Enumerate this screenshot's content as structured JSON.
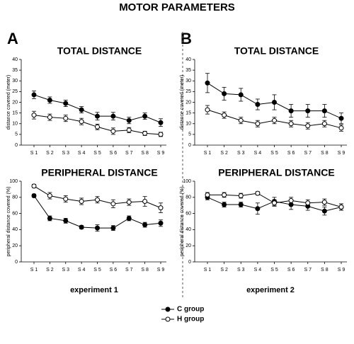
{
  "title": "MOTOR PARAMETERS",
  "panels": [
    {
      "label": "A",
      "footer": "experiment 1"
    },
    {
      "label": "B",
      "footer": "experiment 2"
    }
  ],
  "chart_data": [
    {
      "type": "line",
      "title": "TOTAL DISTANCE",
      "y_label": "distance covered (meter)",
      "categories": [
        "S 1",
        "S 2",
        "S 3",
        "S 4",
        "S 5",
        "S 6",
        "S 7",
        "S 8",
        "S 9"
      ],
      "ylim": [
        0,
        40
      ],
      "yticks": [
        0,
        5,
        10,
        15,
        20,
        25,
        30,
        35,
        40
      ],
      "series": [
        {
          "name": "C group",
          "color": "#000000",
          "marker_fill": "#000000",
          "values": [
            23.5,
            21,
            19.5,
            16.5,
            13.5,
            13.5,
            11.5,
            13.5,
            10.5
          ],
          "errors": [
            1.8,
            1.5,
            1.5,
            1.5,
            1.8,
            1.8,
            1.5,
            1.5,
            1.8
          ]
        },
        {
          "name": "H group",
          "color": "#000000",
          "marker_fill": "#ffffff",
          "values": [
            14,
            13,
            12.5,
            11,
            8.5,
            6.5,
            7,
            5.5,
            5
          ],
          "errors": [
            1.8,
            1.5,
            1.5,
            1.5,
            1.3,
            1.5,
            1.2,
            1,
            1
          ]
        }
      ]
    },
    {
      "type": "line",
      "title": "PERIPHERAL DISTANCE",
      "y_label": "peripheral distance covered (%)",
      "categories": [
        "S 1",
        "S 2",
        "S 3",
        "S 4",
        "S 5",
        "S 6",
        "S 7",
        "S 8",
        "S 9"
      ],
      "ylim": [
        0,
        100
      ],
      "yticks": [
        0,
        20,
        40,
        60,
        80,
        100
      ],
      "series": [
        {
          "color": "#000000",
          "marker_fill": "#000000",
          "values": [
            82,
            54,
            51,
            43,
            42,
            42,
            54,
            46,
            48
          ],
          "errors": [
            2,
            3,
            3,
            2,
            4,
            3,
            3,
            3,
            4
          ]
        },
        {
          "color": "#000000",
          "marker_fill": "#ffffff",
          "values": [
            94,
            82,
            78,
            75,
            77,
            72,
            74,
            75,
            67
          ],
          "errors": [
            2,
            4,
            4,
            4,
            4,
            5,
            4,
            6,
            6
          ]
        }
      ]
    },
    {
      "type": "line",
      "title": "TOTAL DISTANCE",
      "y_label": "distance covered (meter)",
      "categories": [
        "S 1",
        "S 2",
        "S 3",
        "S 4",
        "S 5",
        "S 6",
        "S 7",
        "S 8",
        "S 9"
      ],
      "ylim": [
        0,
        40
      ],
      "yticks": [
        0,
        5,
        10,
        15,
        20,
        25,
        30,
        35,
        40
      ],
      "series": [
        {
          "color": "#000000",
          "marker_fill": "#000000",
          "values": [
            29,
            24,
            23.5,
            19,
            20,
            16,
            16,
            16,
            12.5
          ],
          "errors": [
            4.5,
            3,
            3,
            2.5,
            3.5,
            3,
            3,
            3,
            2.5
          ]
        },
        {
          "color": "#000000",
          "marker_fill": "#ffffff",
          "values": [
            16.5,
            14,
            11.5,
            10,
            11.5,
            10,
            9,
            10,
            8
          ],
          "errors": [
            2,
            1.5,
            1.5,
            1.5,
            1.5,
            1.5,
            1.5,
            1.5,
            1.5
          ]
        }
      ]
    },
    {
      "type": "line",
      "title": "PERIPHERAL DISTANCE",
      "y_label": "peripheral distance covered (%)",
      "categories": [
        "S 1",
        "S 2",
        "S 3",
        "S 4",
        "S 5",
        "S 6",
        "S 7",
        "S 8",
        "S 9"
      ],
      "ylim": [
        0,
        100
      ],
      "yticks": [
        0,
        20,
        40,
        60,
        80,
        100
      ],
      "series": [
        {
          "color": "#000000",
          "marker_fill": "#000000",
          "values": [
            80,
            71,
            71,
            66,
            75,
            71,
            69,
            63,
            68
          ],
          "errors": [
            3,
            3,
            3,
            7,
            5,
            6,
            5,
            5,
            4
          ]
        },
        {
          "color": "#000000",
          "marker_fill": "#ffffff",
          "values": [
            83,
            83,
            82,
            85,
            73,
            76,
            73,
            74,
            68
          ],
          "errors": [
            3,
            3,
            3,
            2,
            4,
            4,
            4,
            4,
            4
          ]
        }
      ]
    }
  ]
}
